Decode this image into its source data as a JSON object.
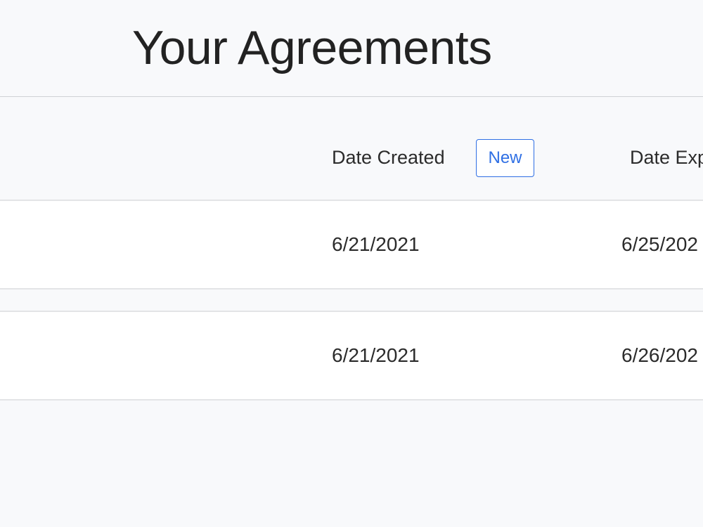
{
  "page": {
    "title": "Your Agreements"
  },
  "table": {
    "columns": {
      "date_created": "Date Created",
      "date_expires": "Date Exp"
    },
    "new_button": "New",
    "rows": [
      {
        "date_created": "6/21/2021",
        "date_expires": "6/25/202"
      },
      {
        "date_created": "6/21/2021",
        "date_expires": "6/26/202"
      }
    ]
  },
  "colors": {
    "accent": "#2f6fe4",
    "background": "#f8f9fb"
  }
}
